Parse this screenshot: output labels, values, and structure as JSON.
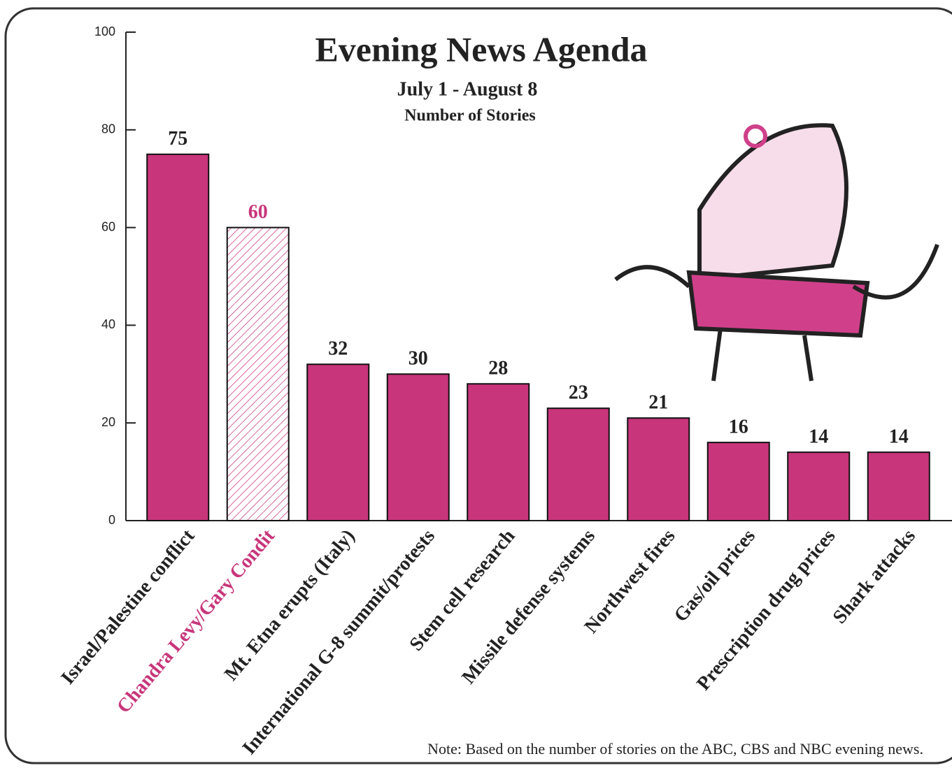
{
  "chart_data": {
    "type": "bar",
    "title": "Evening News Agenda",
    "subtitle": "July 1 - August 8",
    "subtitle2": "Number of Stories",
    "categories": [
      "Israel/Palestine conflict",
      "Chandra Levy/Gary Condit",
      "Mt. Etna erupts (Italy)",
      "International G-8 summit/protests",
      "Stem cell research",
      "Missile defense systems",
      "Northwest fires",
      "Gas/oil prices",
      "Prescription drug prices",
      "Shark attacks"
    ],
    "values": [
      75,
      60,
      32,
      30,
      28,
      23,
      21,
      16,
      14,
      14
    ],
    "colors": [
      "#c8357a",
      "#c8357a",
      "#c8357a",
      "#c8357a",
      "#c8357a",
      "#c8357a",
      "#c8357a",
      "#c8357a",
      "#c8357a",
      "#c8357a"
    ],
    "hatched": [
      false,
      true,
      false,
      false,
      false,
      false,
      false,
      false,
      false,
      false
    ],
    "label_colors": [
      "#222222",
      "#c8357a",
      "#222222",
      "#222222",
      "#222222",
      "#222222",
      "#222222",
      "#222222",
      "#222222",
      "#222222"
    ],
    "ylim": [
      0,
      100
    ],
    "yticks": [
      0,
      20,
      40,
      60,
      80,
      100
    ],
    "grid": false,
    "note": "Note: Based on the number of stories on the ABC, CBS and NBC evening news."
  }
}
